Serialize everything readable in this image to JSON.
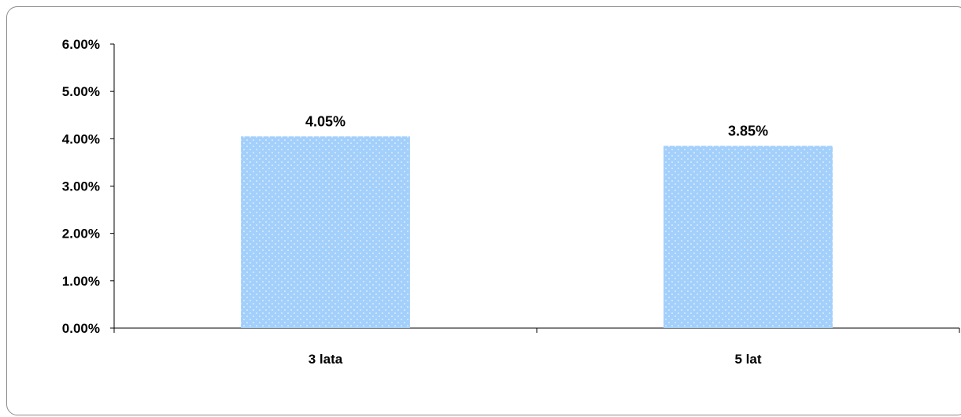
{
  "chart_data": {
    "type": "bar",
    "categories": [
      "3 lata",
      "5 lat"
    ],
    "values": [
      4.05,
      3.85
    ],
    "data_labels": [
      "4.05%",
      "3.85%"
    ],
    "title": "",
    "xlabel": "",
    "ylabel": "",
    "ylim": [
      0,
      6
    ],
    "y_ticks": [
      "0.00%",
      "1.00%",
      "2.00%",
      "3.00%",
      "4.00%",
      "5.00%",
      "6.00%"
    ],
    "grid": false,
    "legend": "none",
    "bar_color": "#a3cffb",
    "bar_pattern": "dotted"
  }
}
